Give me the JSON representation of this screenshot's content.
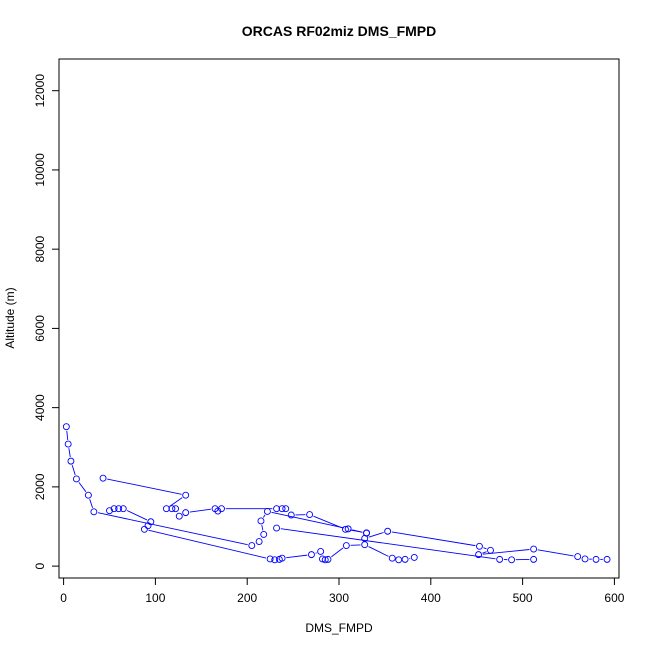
{
  "chart_data": {
    "type": "line",
    "title": "ORCAS RF02miz DMS_FMPD",
    "xlabel": "DMS_FMPD",
    "ylabel": "Altitude (m)",
    "xlim": [
      -5,
      605
    ],
    "ylim": [
      -300,
      12800
    ],
    "xticks": [
      0,
      100,
      200,
      300,
      400,
      500,
      600
    ],
    "yticks": [
      0,
      2000,
      4000,
      6000,
      8000,
      10000,
      12000
    ],
    "grid": false,
    "series_color": "#0000ff",
    "series": [
      {
        "marker": "open-circle",
        "points": [
          [
            3,
            3520
          ],
          [
            5,
            3080
          ],
          [
            8,
            2650
          ],
          [
            14,
            2200
          ],
          [
            27,
            1790
          ],
          [
            33,
            1370
          ],
          [
            205,
            520
          ],
          [
            213,
            620
          ],
          [
            218,
            800
          ],
          [
            215,
            1140
          ],
          [
            222,
            1380
          ],
          [
            310,
            940
          ],
          [
            330,
            830
          ],
          [
            328,
            700
          ],
          [
            353,
            880
          ],
          [
            453,
            500
          ],
          [
            465,
            400
          ],
          [
            452,
            290
          ],
          [
            512,
            430
          ],
          [
            560,
            240
          ],
          [
            568,
            180
          ],
          [
            580,
            170
          ],
          [
            592,
            170
          ]
        ]
      },
      {
        "marker": "open-circle",
        "points": [
          [
            43,
            2220
          ],
          [
            133,
            1790
          ],
          [
            112,
            1450
          ],
          [
            118,
            1450
          ],
          [
            122,
            1450
          ],
          [
            126,
            1260
          ],
          [
            133,
            1350
          ],
          [
            165,
            1450
          ],
          [
            168,
            1390
          ],
          [
            172,
            1450
          ],
          [
            232,
            1450
          ],
          [
            238,
            1450
          ],
          [
            242,
            1450
          ],
          [
            248,
            1290
          ],
          [
            268,
            1300
          ],
          [
            307,
            930
          ],
          [
            330,
            840
          ]
        ]
      },
      {
        "marker": "open-circle",
        "points": [
          [
            50,
            1400
          ],
          [
            55,
            1450
          ],
          [
            60,
            1450
          ],
          [
            65,
            1450
          ],
          [
            95,
            1120
          ],
          [
            92,
            1020
          ],
          [
            88,
            930
          ],
          [
            225,
            180
          ],
          [
            230,
            160
          ],
          [
            235,
            170
          ],
          [
            238,
            200
          ],
          [
            270,
            290
          ],
          [
            280,
            370
          ],
          [
            282,
            180
          ],
          [
            285,
            160
          ],
          [
            288,
            170
          ],
          [
            308,
            520
          ],
          [
            328,
            540
          ],
          [
            358,
            200
          ],
          [
            365,
            160
          ],
          [
            372,
            170
          ],
          [
            382,
            220
          ]
        ]
      },
      {
        "marker": "open-circle",
        "points": [
          [
            232,
            960
          ],
          [
            475,
            170
          ],
          [
            488,
            160
          ],
          [
            512,
            170
          ]
        ]
      }
    ]
  }
}
